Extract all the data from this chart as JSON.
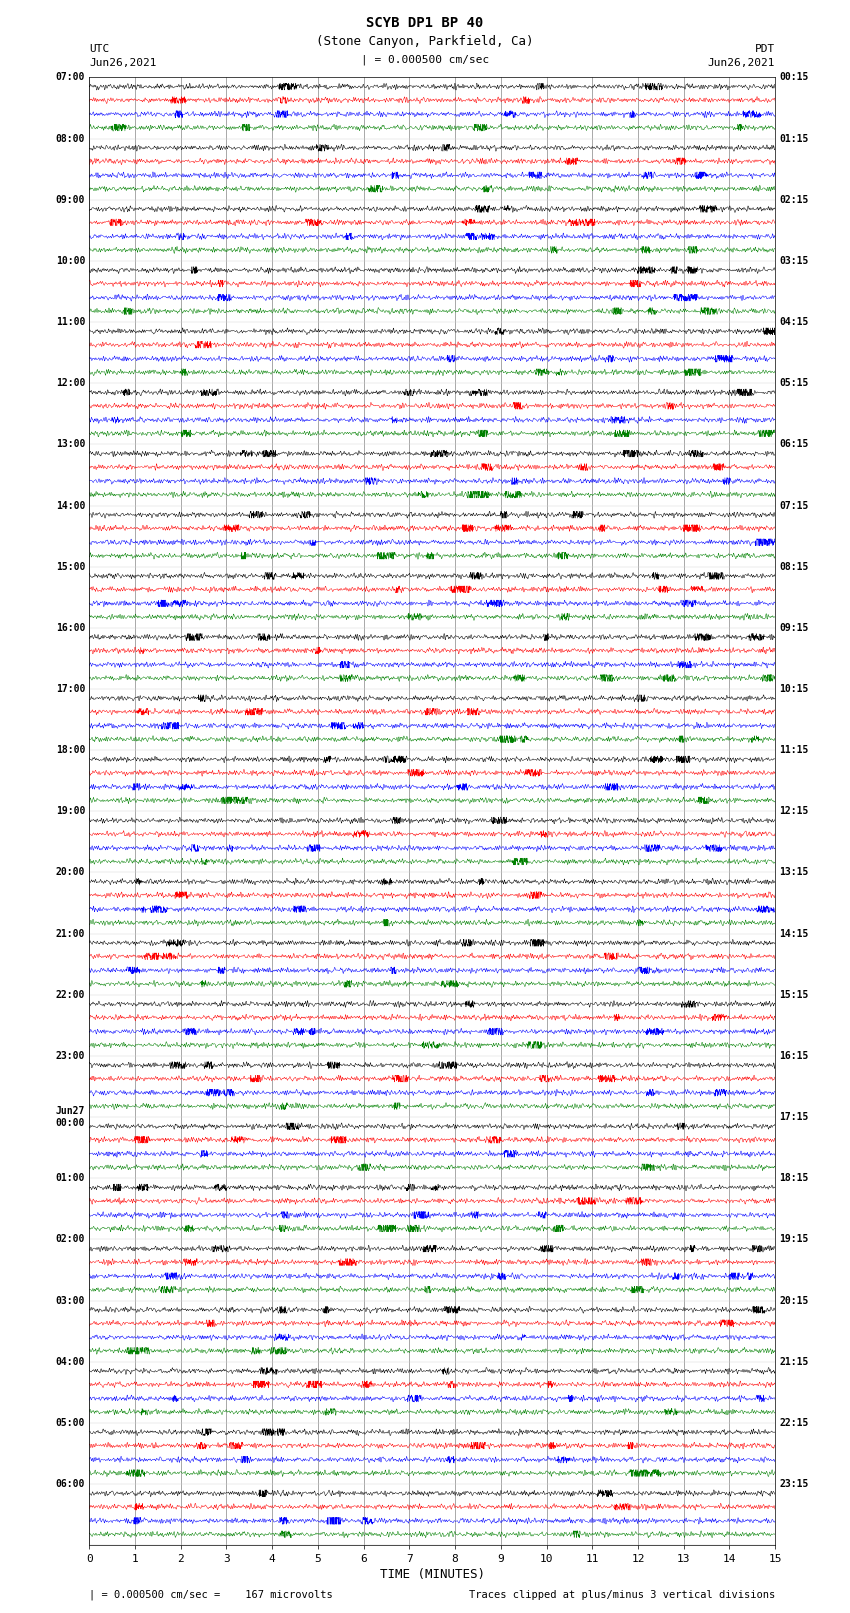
{
  "title_line1": "SCYB DP1 BP 40",
  "title_line2": "(Stone Canyon, Parkfield, Ca)",
  "scale_label": "| = 0.000500 cm/sec",
  "left_label_top": "UTC",
  "left_label_date": "Jun26,2021",
  "right_label_top": "PDT",
  "right_label_date": "Jun26,2021",
  "bottom_label": "TIME (MINUTES)",
  "bottom_note_left": "| = 0.000500 cm/sec =    167 microvolts",
  "bottom_note_right": "Traces clipped at plus/minus 3 vertical divisions",
  "xlabel_ticks": [
    0,
    1,
    2,
    3,
    4,
    5,
    6,
    7,
    8,
    9,
    10,
    11,
    12,
    13,
    14,
    15
  ],
  "utc_times": [
    "07:00",
    "08:00",
    "09:00",
    "10:00",
    "11:00",
    "12:00",
    "13:00",
    "14:00",
    "15:00",
    "16:00",
    "17:00",
    "18:00",
    "19:00",
    "20:00",
    "21:00",
    "22:00",
    "23:00",
    "Jun27\n00:00",
    "01:00",
    "02:00",
    "03:00",
    "04:00",
    "05:00",
    "06:00"
  ],
  "pdt_times": [
    "00:15",
    "01:15",
    "02:15",
    "03:15",
    "04:15",
    "05:15",
    "06:15",
    "07:15",
    "08:15",
    "09:15",
    "10:15",
    "11:15",
    "12:15",
    "13:15",
    "14:15",
    "15:15",
    "16:15",
    "17:15",
    "18:15",
    "19:15",
    "20:15",
    "21:15",
    "22:15",
    "23:15"
  ],
  "n_rows": 24,
  "traces_per_row": 4,
  "colors": [
    "black",
    "red",
    "blue",
    "green"
  ],
  "bg_color": "white",
  "fig_width": 8.5,
  "fig_height": 16.13,
  "dpi": 100,
  "noise_amp": 0.018,
  "clip_val": 0.055
}
